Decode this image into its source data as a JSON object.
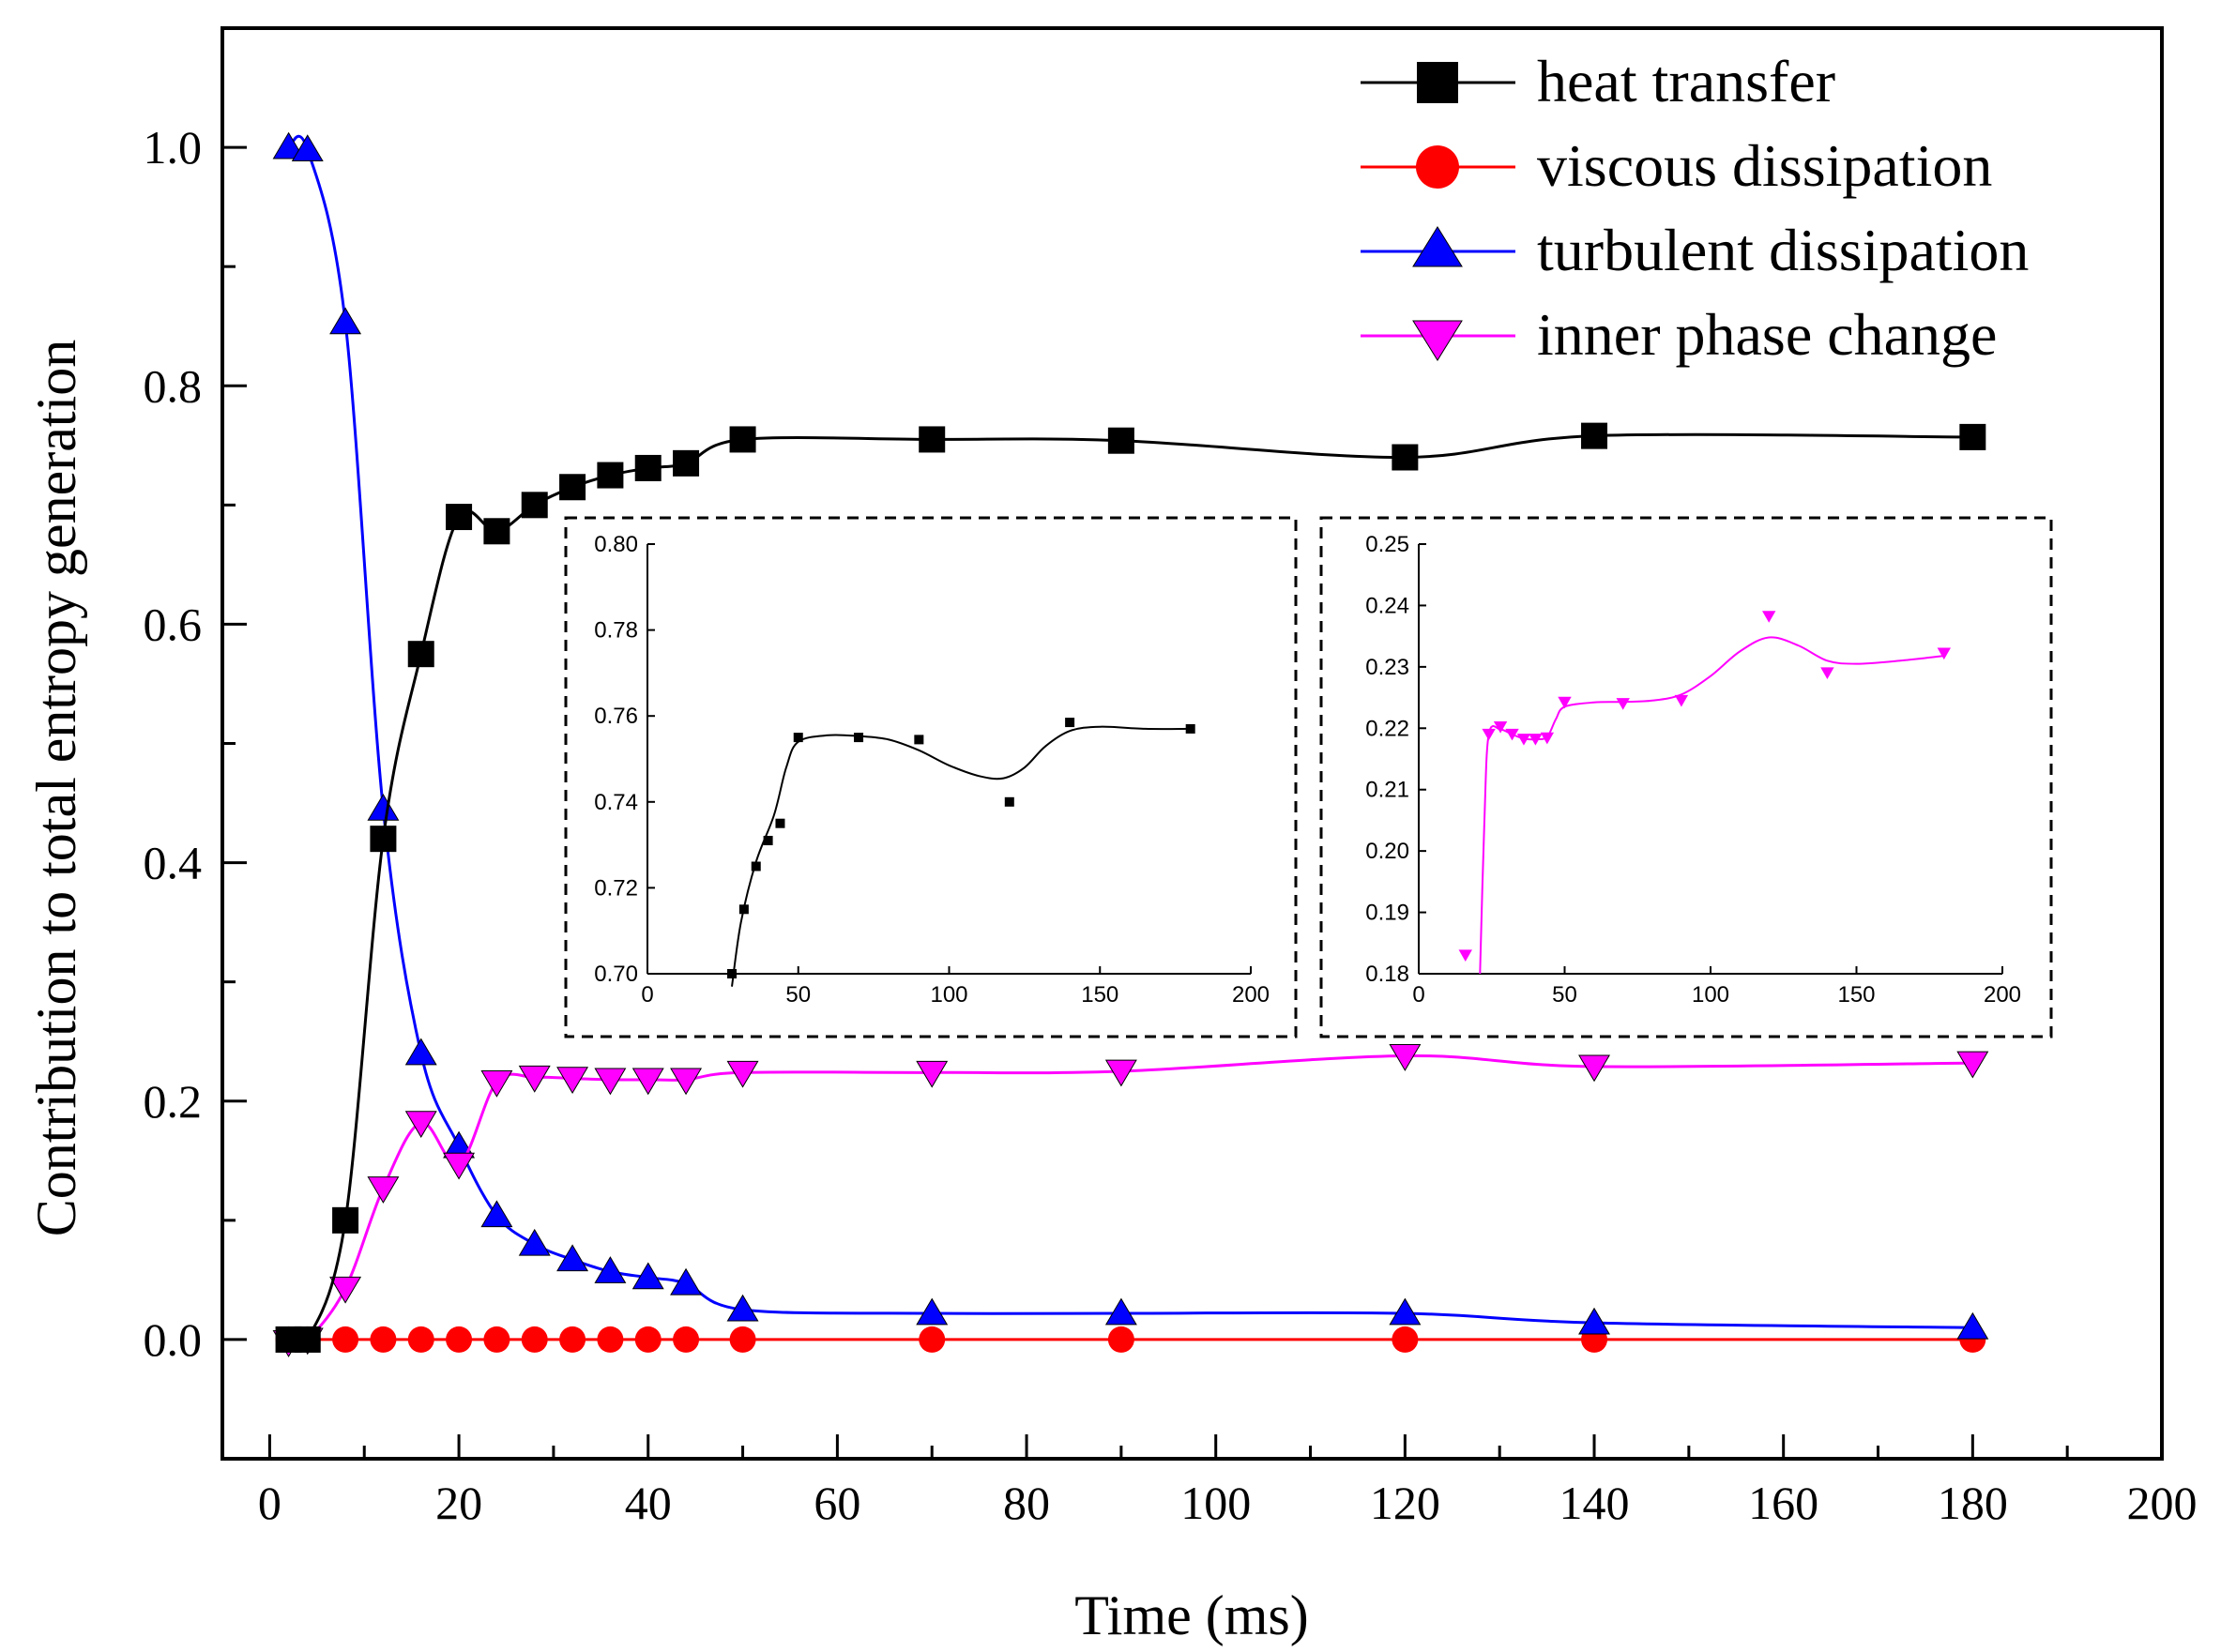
{
  "chart_data": [
    {
      "type": "line",
      "name": "main",
      "xlabel": "Time (ms)",
      "ylabel": "Contribution to total entropy generation",
      "xlim": [
        -5,
        200
      ],
      "ylim": [
        -0.1,
        1.1
      ],
      "xticks": [
        0,
        20,
        40,
        60,
        80,
        100,
        120,
        140,
        160,
        180,
        200
      ],
      "yticks": [
        0.0,
        0.2,
        0.4,
        0.6,
        0.8,
        1.0
      ],
      "xtick_labels": [
        "0",
        "20",
        "40",
        "60",
        "80",
        "100",
        "120",
        "140",
        "160",
        "180",
        "200"
      ],
      "ytick_labels": [
        "0.0",
        "0.2",
        "0.4",
        "0.6",
        "0.8",
        "1.0"
      ],
      "legend_position": "top-right",
      "series": [
        {
          "name": "heat transfer",
          "color": "#000000",
          "marker": "square",
          "x": [
            2,
            4,
            8,
            12,
            16,
            20,
            24,
            28,
            32,
            36,
            40,
            44,
            50,
            70,
            90,
            120,
            140,
            180
          ],
          "values": [
            0.0,
            0.0,
            0.1,
            0.42,
            0.575,
            0.69,
            0.678,
            0.7,
            0.715,
            0.725,
            0.731,
            0.735,
            0.755,
            0.755,
            0.754,
            0.74,
            0.758,
            0.757
          ]
        },
        {
          "name": "viscous dissipation",
          "color": "#ff0000",
          "marker": "circle",
          "x": [
            2,
            4,
            8,
            12,
            16,
            20,
            24,
            28,
            32,
            36,
            40,
            44,
            50,
            70,
            90,
            120,
            140,
            180
          ],
          "values": [
            0,
            0,
            0,
            0,
            0,
            0,
            0,
            0,
            0,
            0,
            0,
            0,
            0,
            0,
            0,
            0,
            0,
            0
          ]
        },
        {
          "name": "turbulent dissipation",
          "color": "#0000ff",
          "marker": "triangle-up",
          "x": [
            2,
            4,
            8,
            12,
            16,
            20,
            24,
            28,
            32,
            36,
            40,
            44,
            50,
            70,
            90,
            120,
            140,
            180
          ],
          "values": [
            1.0,
            0.998,
            0.853,
            0.445,
            0.24,
            0.162,
            0.104,
            0.08,
            0.067,
            0.057,
            0.052,
            0.047,
            0.025,
            0.022,
            0.022,
            0.022,
            0.014,
            0.01
          ]
        },
        {
          "name": "inner phase change",
          "color": "#ff00ff",
          "marker": "triangle-down",
          "x": [
            2,
            4,
            8,
            12,
            16,
            20,
            24,
            28,
            32,
            36,
            40,
            44,
            50,
            70,
            90,
            120,
            140,
            180
          ],
          "values": [
            -0.002,
            0.0,
            0.043,
            0.127,
            0.182,
            0.147,
            0.216,
            0.22,
            0.219,
            0.218,
            0.218,
            0.218,
            0.224,
            0.224,
            0.225,
            0.238,
            0.229,
            0.232
          ]
        }
      ]
    },
    {
      "type": "line",
      "name": "inset-heat-transfer",
      "xlim": [
        0,
        200
      ],
      "ylim": [
        0.7,
        0.8
      ],
      "xticks": [
        0,
        50,
        100,
        150,
        200
      ],
      "yticks": [
        0.7,
        0.72,
        0.74,
        0.76,
        0.78,
        0.8
      ],
      "xtick_labels": [
        "0",
        "50",
        "100",
        "150",
        "200"
      ],
      "ytick_labels": [
        "0.70",
        "0.72",
        "0.74",
        "0.76",
        "0.78",
        "0.80"
      ],
      "series": [
        {
          "name": "heat transfer",
          "color": "#000000",
          "marker": "square",
          "x": [
            28,
            32,
            36,
            40,
            44,
            50,
            70,
            90,
            120,
            140,
            180
          ],
          "values": [
            0.7,
            0.715,
            0.725,
            0.731,
            0.735,
            0.755,
            0.755,
            0.7545,
            0.74,
            0.7585,
            0.757
          ],
          "curve": [
            [
              28,
              0.697
            ],
            [
              31,
              0.712
            ],
            [
              36,
              0.726
            ],
            [
              42,
              0.737
            ],
            [
              46,
              0.748
            ],
            [
              50,
              0.754
            ],
            [
              60,
              0.7555
            ],
            [
              70,
              0.7553
            ],
            [
              80,
              0.7545
            ],
            [
              90,
              0.752
            ],
            [
              100,
              0.7485
            ],
            [
              110,
              0.746
            ],
            [
              118,
              0.7455
            ],
            [
              125,
              0.748
            ],
            [
              132,
              0.753
            ],
            [
              140,
              0.7565
            ],
            [
              150,
              0.7575
            ],
            [
              165,
              0.757
            ],
            [
              180,
              0.757
            ]
          ]
        }
      ]
    },
    {
      "type": "line",
      "name": "inset-inner-phase-change",
      "xlim": [
        0,
        200
      ],
      "ylim": [
        0.18,
        0.25
      ],
      "xticks": [
        0,
        50,
        100,
        150,
        200
      ],
      "yticks": [
        0.18,
        0.19,
        0.2,
        0.21,
        0.22,
        0.23,
        0.24,
        0.25
      ],
      "xtick_labels": [
        "0",
        "50",
        "100",
        "150",
        "200"
      ],
      "ytick_labels": [
        "0.18",
        "0.19",
        "0.20",
        "0.21",
        "0.22",
        "0.23",
        "0.24",
        "0.25"
      ],
      "series": [
        {
          "name": "inner phase change",
          "color": "#ff00ff",
          "marker": "triangle-down",
          "x": [
            16,
            24,
            28,
            32,
            36,
            40,
            44,
            50,
            70,
            90,
            120,
            140,
            180
          ],
          "values": [
            0.183,
            0.219,
            0.2202,
            0.219,
            0.2182,
            0.2182,
            0.2184,
            0.2242,
            0.224,
            0.2245,
            0.2382,
            0.229,
            0.2322
          ],
          "curve": [
            [
              21,
              0.18
            ],
            [
              22.5,
              0.205
            ],
            [
              24,
              0.219
            ],
            [
              28,
              0.2198
            ],
            [
              32,
              0.219
            ],
            [
              36,
              0.2183
            ],
            [
              40,
              0.2182
            ],
            [
              44,
              0.2186
            ],
            [
              47,
              0.2215
            ],
            [
              50,
              0.2235
            ],
            [
              60,
              0.2242
            ],
            [
              70,
              0.2243
            ],
            [
              80,
              0.2245
            ],
            [
              90,
              0.2255
            ],
            [
              100,
              0.2285
            ],
            [
              110,
              0.2325
            ],
            [
              120,
              0.2348
            ],
            [
              130,
              0.2335
            ],
            [
              140,
              0.231
            ],
            [
              150,
              0.2305
            ],
            [
              165,
              0.231
            ],
            [
              180,
              0.2318
            ]
          ]
        }
      ]
    }
  ]
}
